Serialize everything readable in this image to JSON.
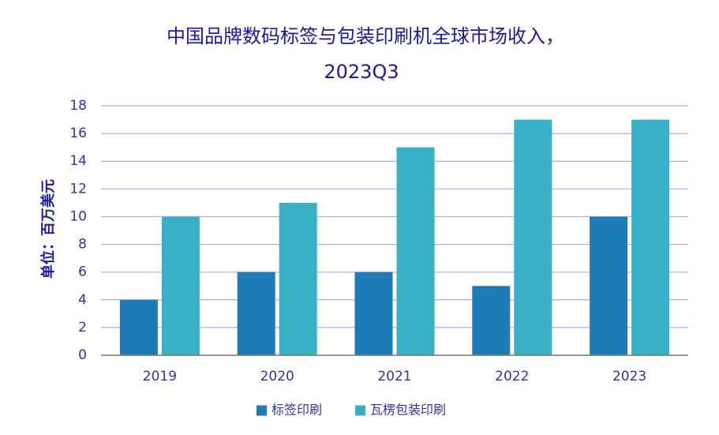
{
  "chart_data": {
    "type": "bar",
    "title_lines": [
      "中国品牌数码标签与包装印刷机全球市场收入，",
      "2023Q3"
    ],
    "ylabel": "单位：百万美元",
    "xlabel": "",
    "categories": [
      "2019",
      "2020",
      "2021",
      "2022",
      "2023"
    ],
    "series": [
      {
        "name": "标签印刷",
        "color": "#1f7bb8",
        "values": [
          4,
          6,
          6,
          5,
          10
        ]
      },
      {
        "name": "瓦楞包装印刷",
        "color": "#3ab0c6",
        "values": [
          10,
          11,
          15,
          17,
          17
        ]
      }
    ],
    "ylim": [
      0,
      18
    ],
    "yticks": [
      0,
      2,
      4,
      6,
      8,
      10,
      12,
      14,
      16,
      18
    ],
    "grid": true,
    "legend_position": "bottom-center"
  },
  "colors": {
    "text": "#1a1a9e",
    "tick": "#333399",
    "grid": "#aaaaee",
    "axis": "#777777"
  }
}
